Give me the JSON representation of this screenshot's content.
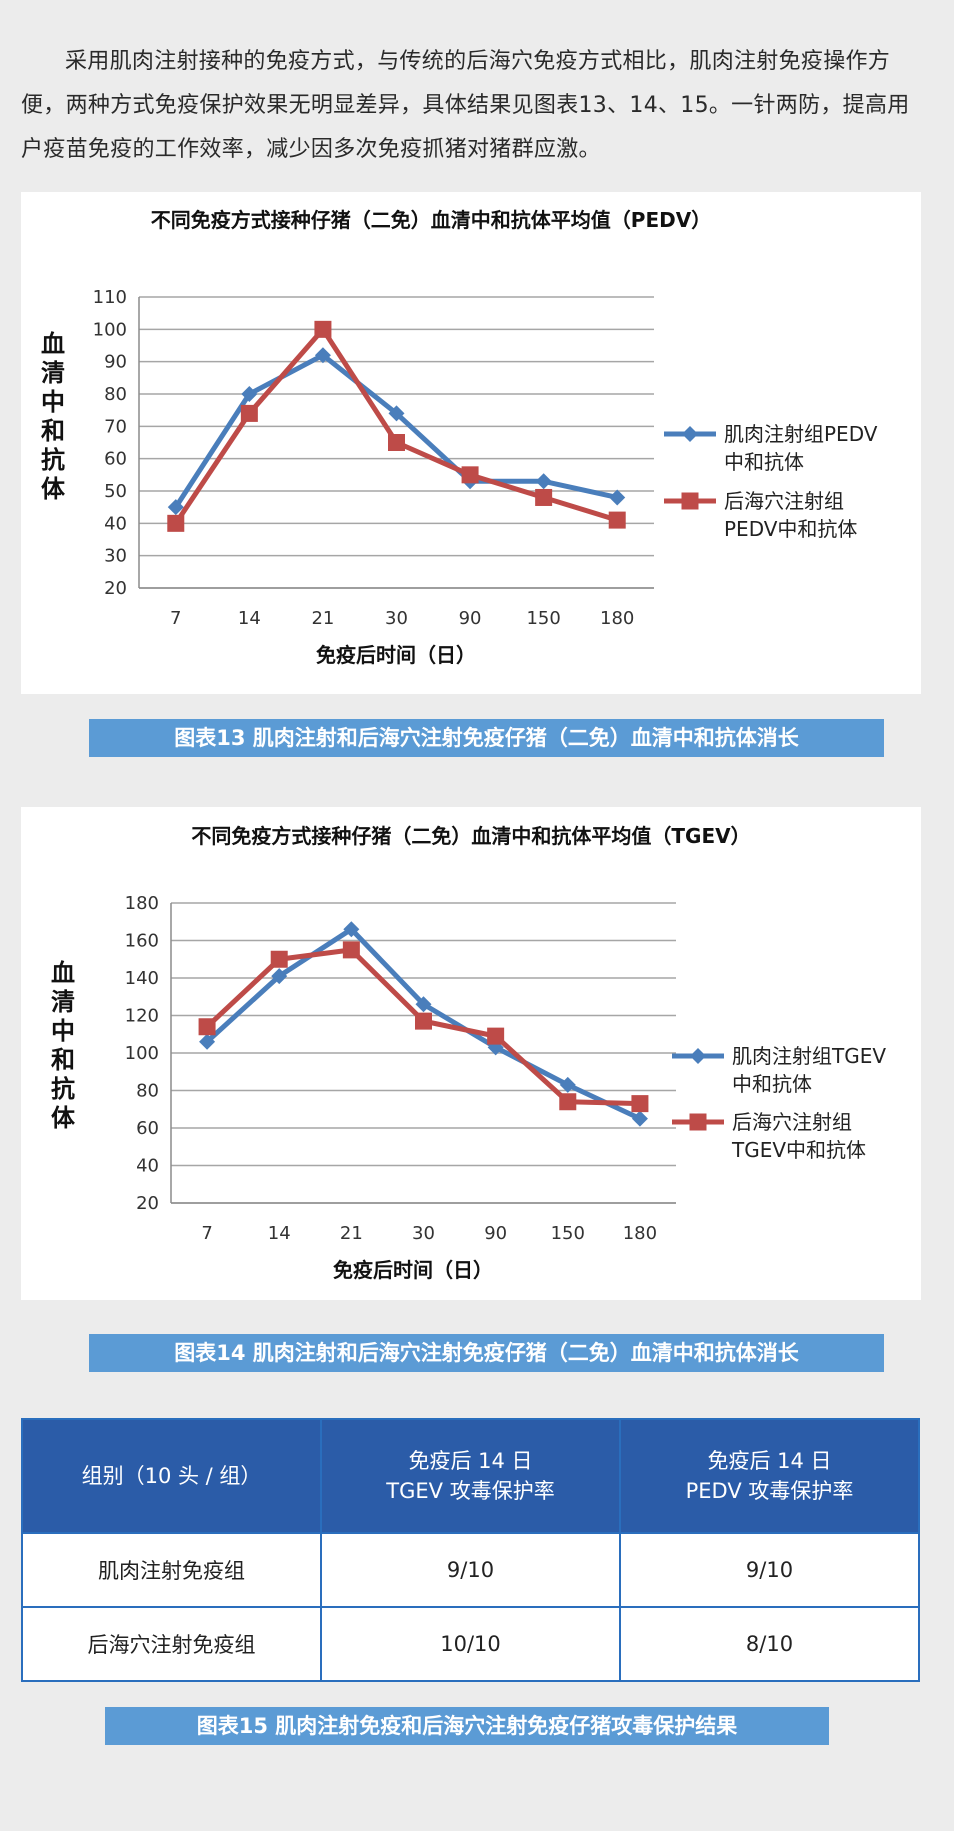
{
  "intro": {
    "text": "采用肌肉注射接种的免疫方式，与传统的后海穴免疫方式相比，肌肉注射免疫操作方便，两种方式免疫保护效果无明显差异，具体结果见图表13、14、15。一针两防，提高用户疫苗免疫的工作效率，减少因多次免疫抓猪对猪群应激。"
  },
  "captions": {
    "fig13": "图表13 肌肉注射和后海穴注射免疫仔猪（二免）血清中和抗体消长",
    "fig14": "图表14  肌肉注射和后海穴注射免疫仔猪（二免）血清中和抗体消长",
    "fig15": "图表15  肌肉注射免疫和后海穴注射免疫仔猪攻毒保护结果"
  },
  "colors": {
    "series1": "#4a7ebb",
    "series2": "#be4b48",
    "caption_bg": "#5b9bd5",
    "table_header": "#2b5ca8"
  },
  "chart_data": [
    {
      "type": "line",
      "title": "不同免疫方式接种仔猪（二免）血清中和抗体平均值（PEDV）",
      "xlabel": "免疫后时间（日）",
      "ylabel": "血清中和抗体",
      "categories": [
        "7",
        "14",
        "21",
        "30",
        "90",
        "150",
        "180"
      ],
      "ylim": [
        20,
        110
      ],
      "yticks": [
        "20",
        "30",
        "40",
        "50",
        "60",
        "70",
        "80",
        "90",
        "100",
        "110"
      ],
      "grid": true,
      "legend_position": "right",
      "series": [
        {
          "name_line1": "肌肉注射组PEDV",
          "name_line2": "中和抗体",
          "marker": "diamond",
          "values": [
            45,
            80,
            92,
            74,
            53,
            53,
            48
          ]
        },
        {
          "name_line1": "后海穴注射组",
          "name_line2": "PEDV中和抗体",
          "marker": "square",
          "values": [
            40,
            74,
            100,
            65,
            55,
            48,
            41
          ]
        }
      ]
    },
    {
      "type": "line",
      "title": "不同免疫方式接种仔猪（二免）血清中和抗体平均值（TGEV）",
      "xlabel": "免疫后时间（日）",
      "ylabel": "血清中和抗体",
      "categories": [
        "7",
        "14",
        "21",
        "30",
        "90",
        "150",
        "180"
      ],
      "ylim": [
        20,
        180
      ],
      "yticks": [
        "20",
        "40",
        "60",
        "80",
        "100",
        "120",
        "140",
        "160",
        "180"
      ],
      "grid": true,
      "legend_position": "right",
      "series": [
        {
          "name_line1": "肌肉注射组TGEV",
          "name_line2": "中和抗体",
          "marker": "diamond",
          "values": [
            106,
            141,
            166,
            126,
            103,
            83,
            65
          ]
        },
        {
          "name_line1": "后海穴注射组",
          "name_line2": "TGEV中和抗体",
          "marker": "square",
          "values": [
            114,
            150,
            155,
            117,
            109,
            74,
            73
          ]
        }
      ]
    }
  ],
  "table": {
    "header": {
      "col1": "组别（10 头 / 组）",
      "col2_line1": "免疫后 14 日",
      "col2_line2": "TGEV 攻毒保护率",
      "col3_line1": "免疫后 14 日",
      "col3_line2": "PEDV 攻毒保护率"
    },
    "rows": [
      {
        "group": "肌肉注射免疫组",
        "tgev": "9/10",
        "pedv": "9/10"
      },
      {
        "group": "后海穴注射免疫组",
        "tgev": "10/10",
        "pedv": "8/10"
      }
    ]
  }
}
